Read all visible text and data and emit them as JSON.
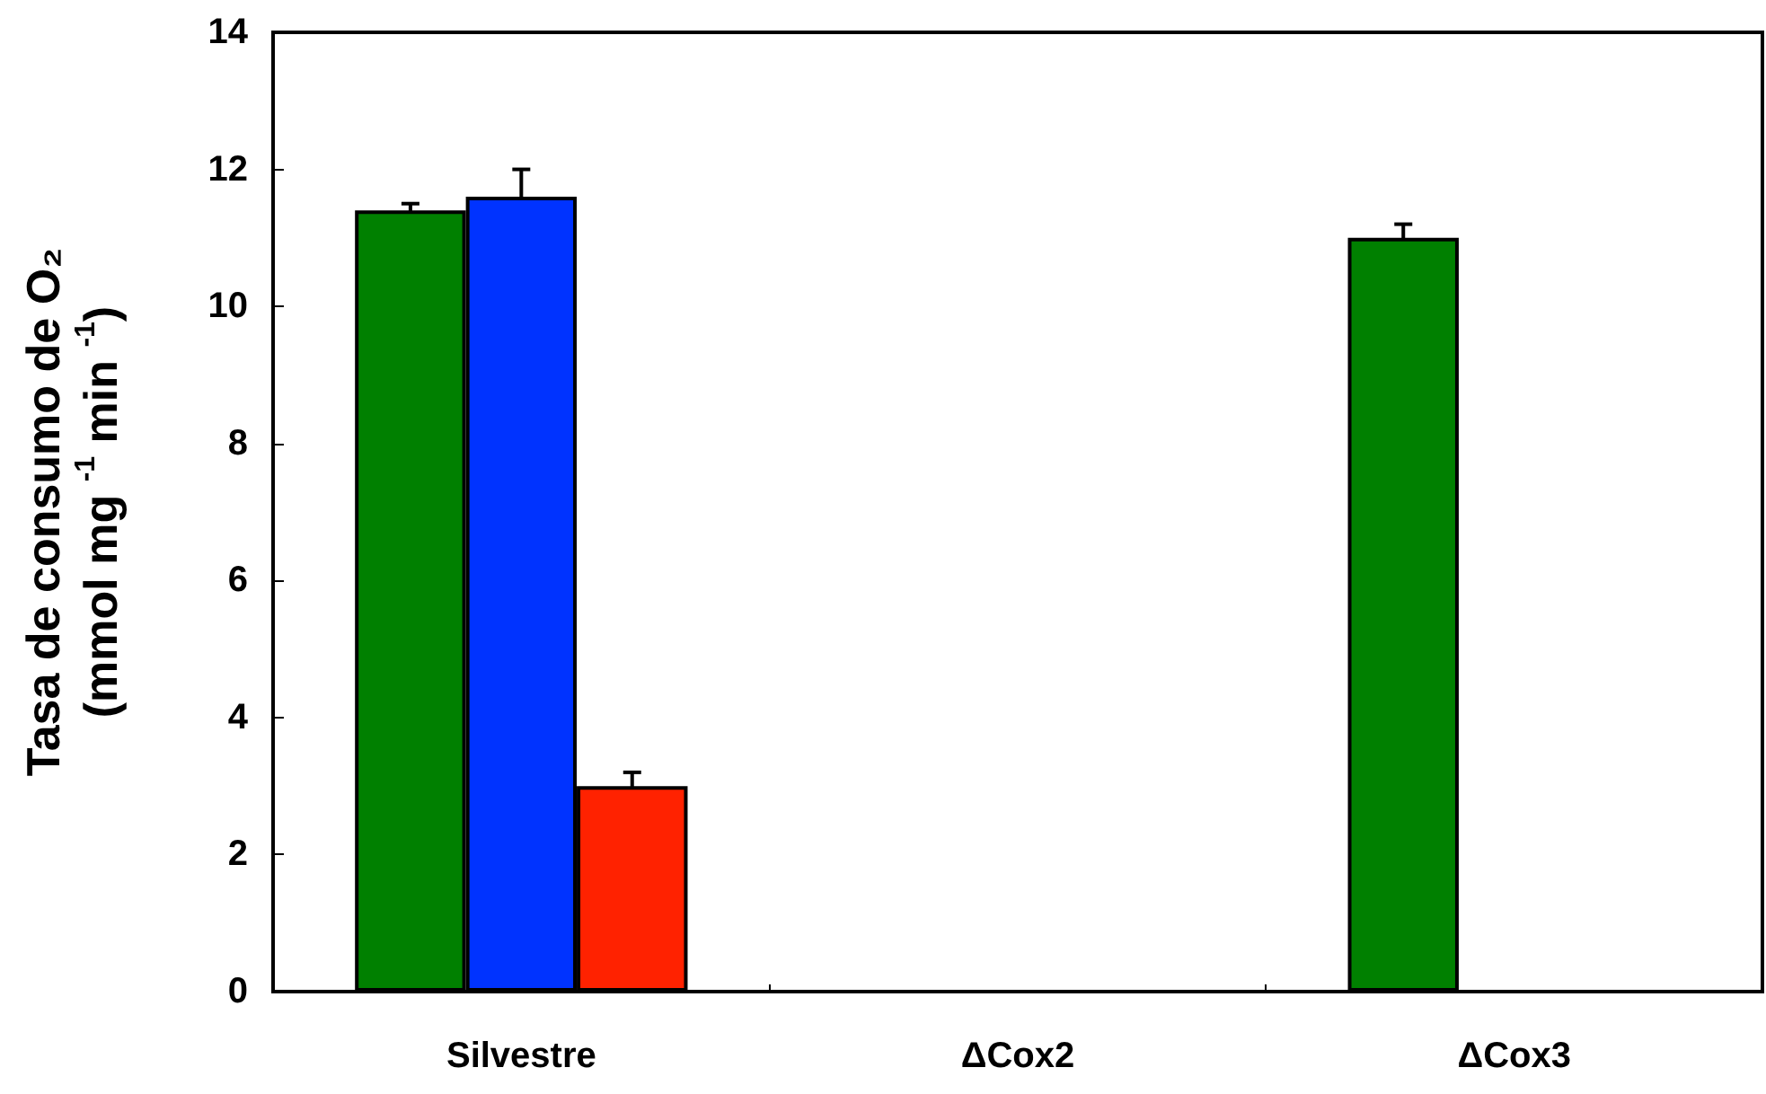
{
  "chart_data": {
    "type": "bar",
    "ylabel": "Tasa de consumo de O₂\n(mmol mg $^{-1}$ min $^{-1}$)",
    "categories": [
      "Silvestre",
      "ΔCox2",
      "ΔCox3"
    ],
    "series": [
      {
        "color": "#008000",
        "values": [
          11.4,
          null,
          11.0
        ],
        "errors": [
          0.1,
          null,
          0.2
        ]
      },
      {
        "color": "#0033ff",
        "values": [
          11.6,
          null,
          null
        ],
        "errors": [
          0.4,
          null,
          null
        ]
      },
      {
        "color": "#ff2200",
        "values": [
          3.0,
          null,
          null
        ],
        "errors": [
          0.2,
          null,
          null
        ]
      }
    ],
    "ylim": [
      0,
      14
    ],
    "yticks": [
      0,
      2,
      4,
      6,
      8,
      10,
      12,
      14
    ]
  }
}
